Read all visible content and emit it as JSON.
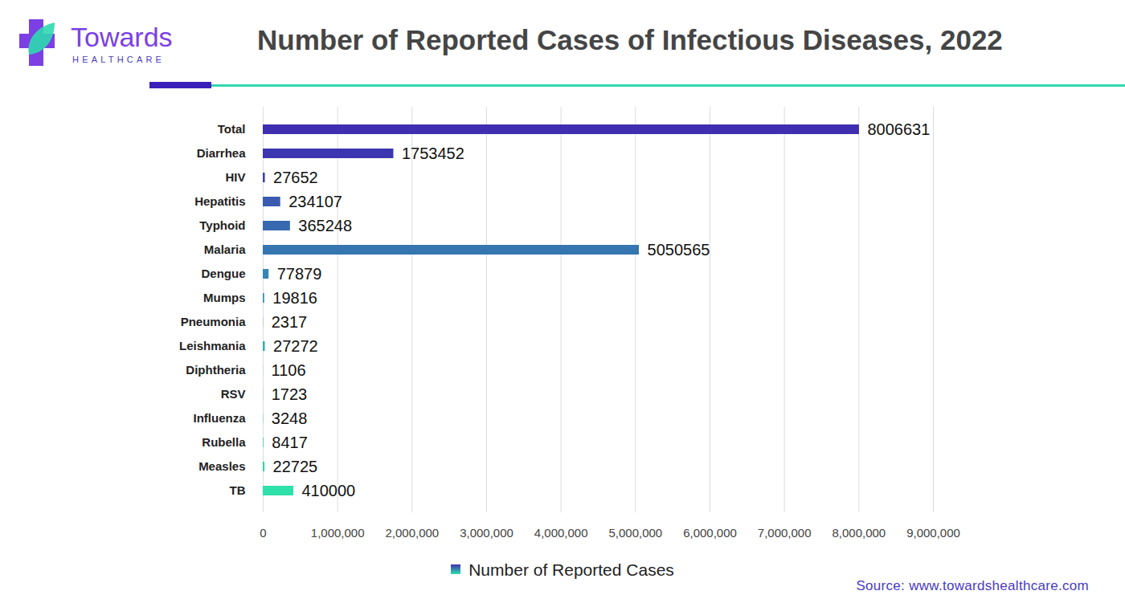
{
  "chart_data": {
    "type": "bar",
    "orientation": "horizontal",
    "title": "Number of Reported Cases of Infectious Diseases, 2022",
    "logo_text": [
      "Towards",
      "HEALTHCARE"
    ],
    "source": "Source: www.towardshealthcare.com",
    "categories": [
      "Total",
      "Diarrhea",
      "HIV",
      "Hepatitis",
      "Typhoid",
      "Malaria",
      "Dengue",
      "Mumps",
      "Pneumonia",
      "Leishmania",
      "Diphtheria",
      "RSV",
      "Influenza",
      "Rubella",
      "Measles",
      "TB"
    ],
    "series": [
      {
        "name": "Number of Reported Cases",
        "values": [
          8006631,
          1753452,
          27652,
          234107,
          365248,
          5050565,
          77879,
          19816,
          2317,
          27272,
          1106,
          1723,
          3248,
          8417,
          22725,
          410000
        ],
        "colors": [
          "#3f2fb0",
          "#3b36b0",
          "#3a3fb2",
          "#3a5bb0",
          "#3868b0",
          "#3575b0",
          "#3488b5",
          "#3498b8",
          "#33a4b9",
          "#30b0b3",
          "#2fb8b0",
          "#2ec0ad",
          "#2ec8aa",
          "#2dd0a8",
          "#2cd8a6",
          "#2ee0aa"
        ]
      }
    ],
    "xlim": [
      0,
      9000000
    ],
    "xticks": [
      0,
      1000000,
      2000000,
      3000000,
      4000000,
      5000000,
      6000000,
      7000000,
      8000000,
      9000000
    ],
    "grid": true,
    "data_labels": true,
    "legend": "bottom"
  }
}
